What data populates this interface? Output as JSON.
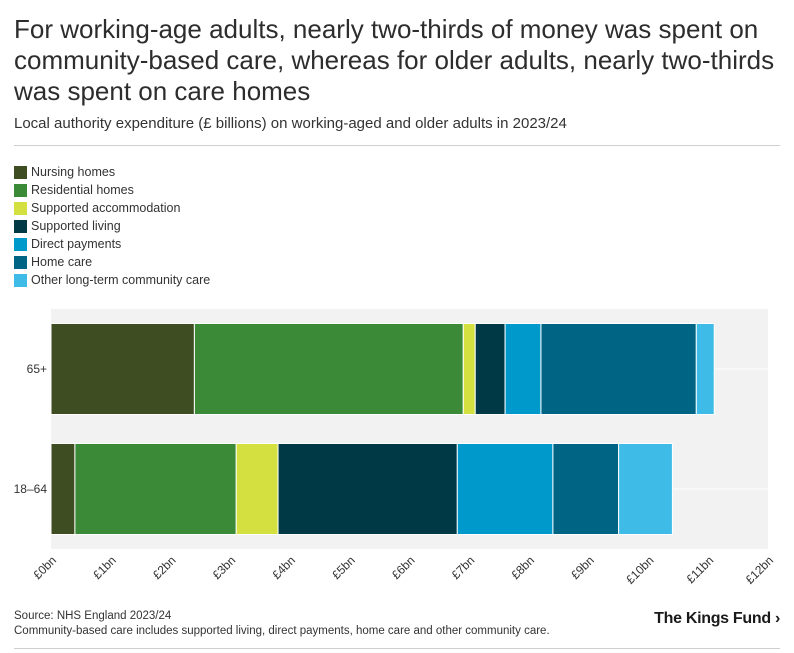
{
  "title": "For working-age adults, nearly two-thirds of money was spent on community-based care, whereas for older adults, nearly two-thirds was spent on care homes",
  "subtitle": "Local authority expenditure (£ billions) on working-aged and older adults in 2023/24",
  "colors": {
    "nursing": "#3f4d23",
    "residential": "#3a8a38",
    "supported_accommodation": "#d4e03f",
    "supported_living": "#003946",
    "direct_payments": "#0099cc",
    "home_care": "#006485",
    "other_community": "#3fbbe8",
    "plot_background": "#f2f2f2"
  },
  "chart_data": {
    "type": "bar",
    "orientation": "horizontal",
    "stacked": true,
    "categories": [
      "65+",
      "18–64"
    ],
    "series": [
      {
        "name": "Nursing homes",
        "color": "#3f4d23",
        "values": [
          2.4,
          0.4
        ]
      },
      {
        "name": "Residential homes",
        "color": "#3a8a38",
        "values": [
          4.5,
          2.7
        ]
      },
      {
        "name": "Supported accommodation",
        "color": "#d4e03f",
        "values": [
          0.2,
          0.7
        ]
      },
      {
        "name": "Supported living",
        "color": "#003946",
        "values": [
          0.5,
          3.0
        ]
      },
      {
        "name": "Direct payments",
        "color": "#0099cc",
        "values": [
          0.6,
          1.6
        ]
      },
      {
        "name": "Home care",
        "color": "#006485",
        "values": [
          2.6,
          1.1
        ]
      },
      {
        "name": "Other long-term community care",
        "color": "#3fbbe8",
        "values": [
          0.3,
          0.9
        ]
      }
    ],
    "x_ticks": [
      "£0bn",
      "£1bn",
      "£2bn",
      "£3bn",
      "£4bn",
      "£5bn",
      "£6bn",
      "£7bn",
      "£8bn",
      "£9bn",
      "£10bn",
      "£11bn",
      "£12bn"
    ],
    "xlim": [
      0,
      12
    ],
    "grid": true,
    "legend_position": "top-left"
  },
  "footer": {
    "source": "Source: NHS England 2023/24",
    "note": "Community-based care includes supported living, direct payments, home care and other community care.",
    "logo": "The Kings Fund"
  }
}
